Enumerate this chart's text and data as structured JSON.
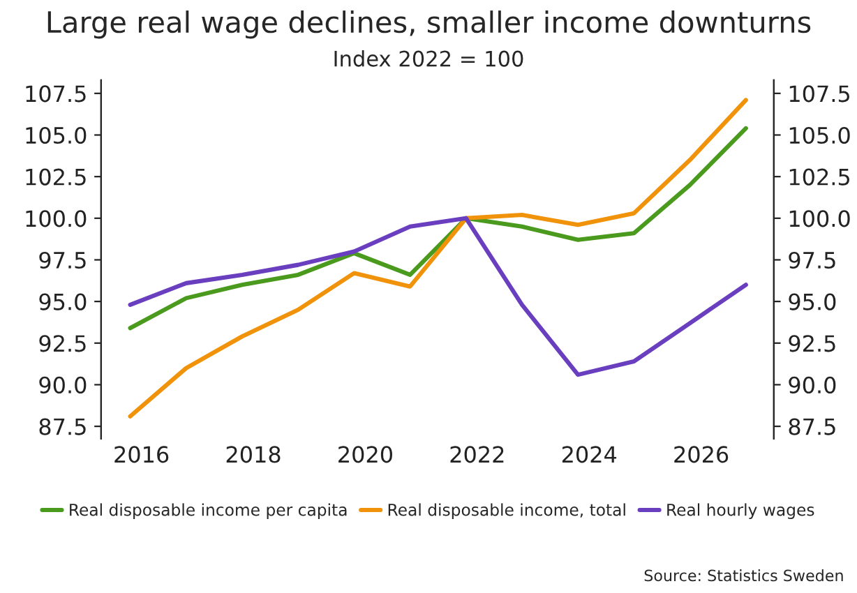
{
  "chart_data": {
    "type": "line",
    "title": "Large real wage declines, smaller income downturns",
    "subtitle": "Index 2022 = 100",
    "x": [
      2015.8,
      2016.8,
      2017.8,
      2018.8,
      2019.8,
      2020.8,
      2021.8,
      2022.8,
      2023.8,
      2024.8,
      2025.8,
      2026.8
    ],
    "series": [
      {
        "name": "Real disposable income per capita",
        "color": "#4a9a1e",
        "values": [
          93.4,
          95.2,
          96.0,
          96.6,
          97.9,
          96.6,
          100.0,
          99.5,
          98.7,
          99.1,
          102.0,
          105.4
        ]
      },
      {
        "name": "Real disposable income, total",
        "color": "#f0920a",
        "values": [
          88.1,
          91.0,
          92.9,
          94.5,
          96.7,
          95.9,
          100.0,
          100.2,
          99.6,
          100.3,
          103.5,
          107.1
        ]
      },
      {
        "name": "Real hourly wages",
        "color": "#6a3fbf",
        "values": [
          94.8,
          96.1,
          96.6,
          97.2,
          98.0,
          99.5,
          100.0,
          94.8,
          90.6,
          91.4,
          93.7,
          96.0
        ]
      }
    ],
    "xlim": [
      2015.28,
      2027.3
    ],
    "xticks": [
      2016,
      2018,
      2020,
      2022,
      2024,
      2026
    ],
    "ylim": [
      86.75,
      108.3
    ],
    "yticks": [
      {
        "value": 87.5,
        "label": "87.5"
      },
      {
        "value": 90,
        "label": "90.0"
      },
      {
        "value": 92.5,
        "label": "92.5"
      },
      {
        "value": 95,
        "label": "95.0"
      },
      {
        "value": 97.5,
        "label": "97.5"
      },
      {
        "value": 100,
        "label": "100.0"
      },
      {
        "value": 102.5,
        "label": "102.5"
      },
      {
        "value": 105,
        "label": "105.0"
      },
      {
        "value": 107.5,
        "label": "107.5"
      }
    ],
    "y2lim": [
      86.75,
      108.3
    ],
    "y2ticks": [
      {
        "value": 87.5,
        "label": "87.5"
      },
      {
        "value": 90,
        "label": "90.0"
      },
      {
        "value": 92.5,
        "label": "92.5"
      },
      {
        "value": 95,
        "label": "95.0"
      },
      {
        "value": 97.5,
        "label": "97.5"
      },
      {
        "value": 100,
        "label": "100.0"
      },
      {
        "value": 102.5,
        "label": "102.5"
      },
      {
        "value": 105,
        "label": "105.0"
      },
      {
        "value": 107.5,
        "label": "107.5"
      }
    ],
    "grid": false,
    "legend": "bottom",
    "line_style": "solid",
    "annotations": [
      "Source: Statistics Sweden"
    ]
  }
}
